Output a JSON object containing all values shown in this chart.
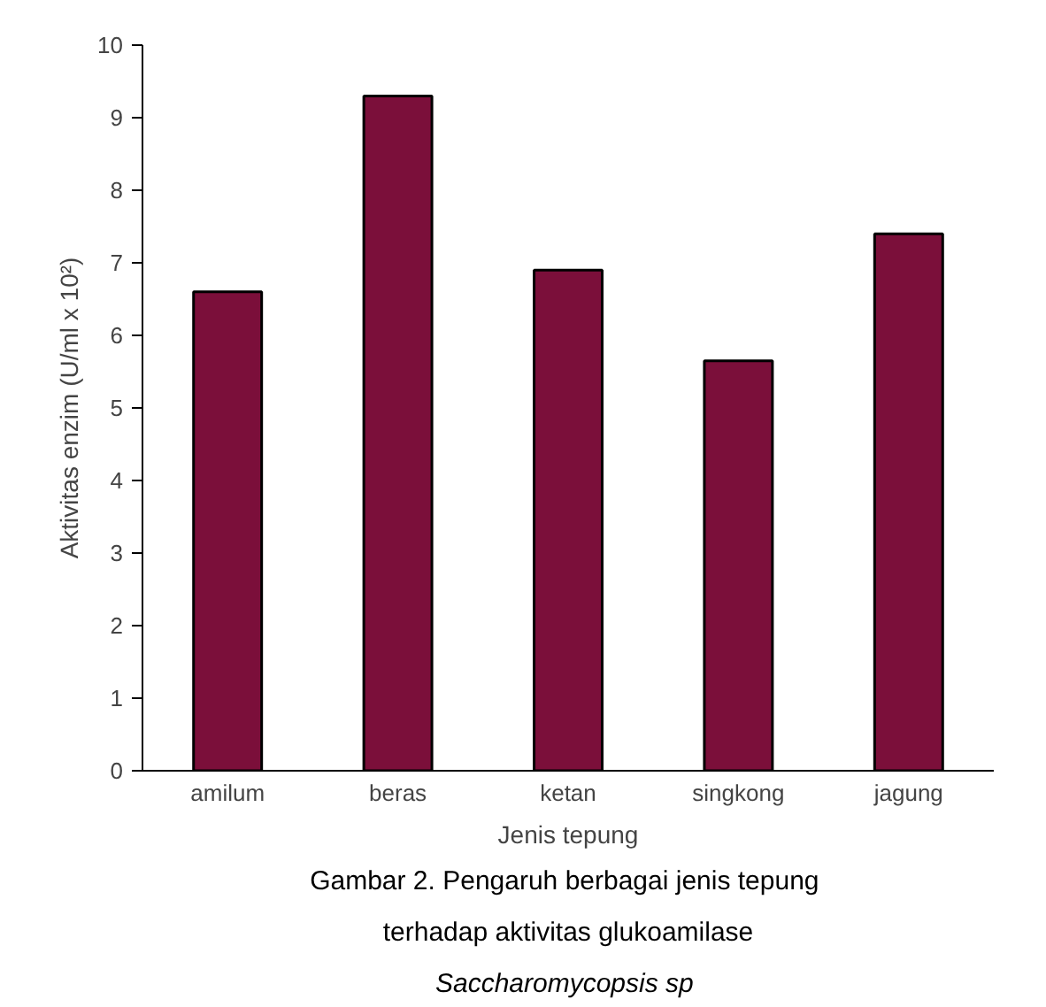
{
  "chart_data": {
    "type": "bar",
    "xlabel": "Jenis tepung",
    "ylabel": "Aktivitas enzim (U/ml x 10²)",
    "categories": [
      "amilum",
      "beras",
      "ketan",
      "singkong",
      "jagung"
    ],
    "values": [
      6.6,
      9.3,
      6.9,
      5.65,
      7.4
    ],
    "color": "#7b0f3a",
    "ylim": [
      0,
      10
    ],
    "yticks": [
      0,
      1,
      2,
      3,
      4,
      5,
      6,
      7,
      8,
      9,
      10
    ],
    "grid": false,
    "annotations": [
      "Gambar  2. Pengaruh berbagai jenis tepung",
      "terhadap aktivitas glukoamilase",
      "Saccharomycopsis  sp"
    ]
  }
}
